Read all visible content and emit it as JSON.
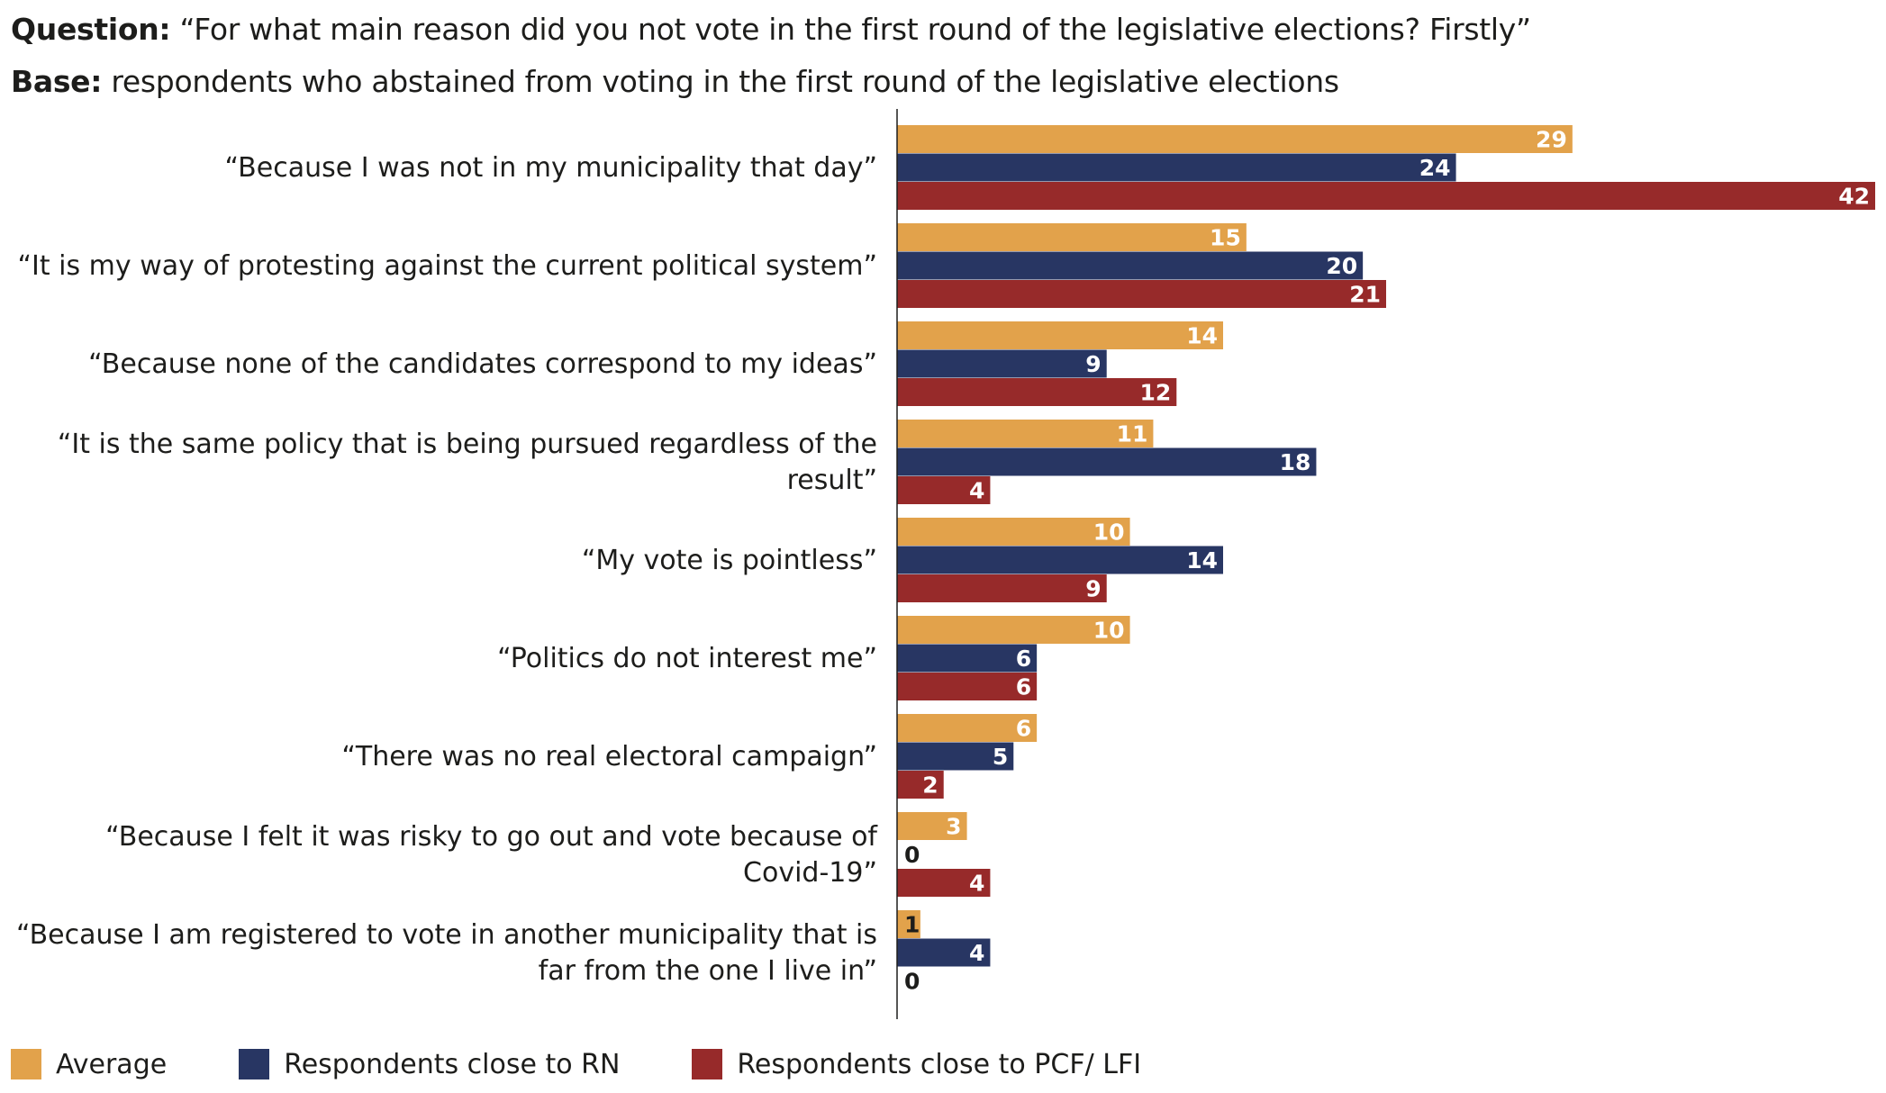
{
  "header": {
    "question_label": "Question:",
    "question_text": "“For what main reason did you not vote in the first round of the legislative elections? Firstly”",
    "base_label": "Base:",
    "base_text": "respondents who abstained from voting in the first round of the legislative elections"
  },
  "colors": {
    "Average": "#E2A24B",
    "Respondents close to RN": "#283663",
    "Respondents close to PCF/ LFI": "#972A2A"
  },
  "chart_data": {
    "type": "bar",
    "orientation": "horizontal",
    "categories": [
      [
        "“Because I was not in my municipality that day”"
      ],
      [
        "“It is my way of protesting against the current political system”"
      ],
      [
        "“Because none of the candidates correspond to my ideas”"
      ],
      [
        "“It is the same policy that is being pursued regardless of the",
        "result”"
      ],
      [
        "“My vote is pointless”"
      ],
      [
        "“Politics do not interest me”"
      ],
      [
        "“There was no real electoral campaign”"
      ],
      [
        "“Because I felt it was risky to go out and vote because of",
        "Covid-19”"
      ],
      [
        "“Because I am registered to vote in another municipality that is",
        "far from the one I live in”"
      ]
    ],
    "series": [
      {
        "name": "Average",
        "values": [
          29,
          15,
          14,
          11,
          10,
          10,
          6,
          3,
          1
        ]
      },
      {
        "name": "Respondents close to RN",
        "values": [
          24,
          20,
          9,
          18,
          14,
          6,
          5,
          0,
          4
        ]
      },
      {
        "name": "Respondents close to PCF/ LFI",
        "values": [
          42,
          21,
          12,
          4,
          9,
          6,
          2,
          4,
          0
        ]
      }
    ],
    "xlim": [
      0,
      42
    ],
    "legend": "bottom",
    "grid": false
  }
}
